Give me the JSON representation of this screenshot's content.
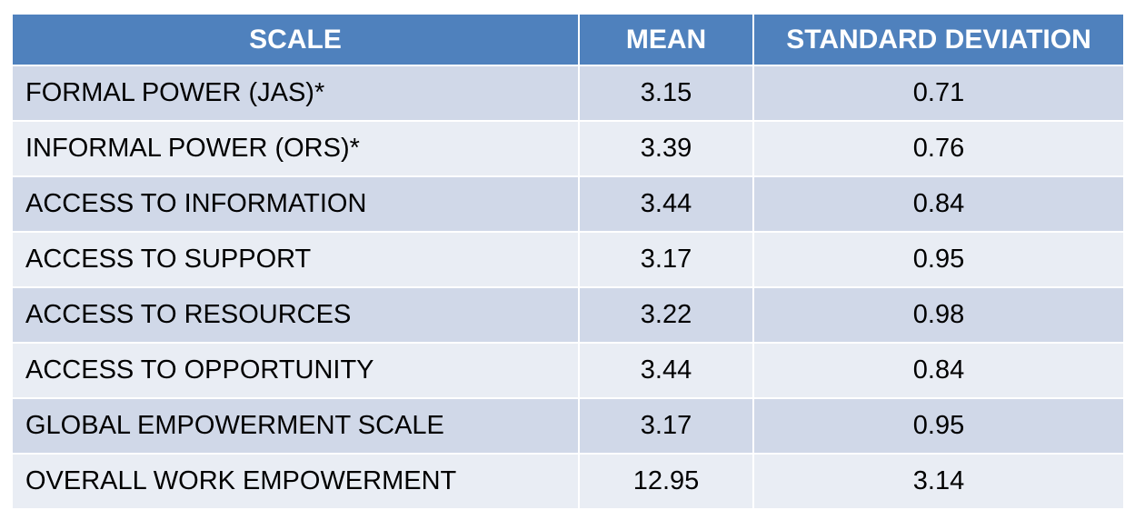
{
  "table": {
    "headers": [
      "SCALE",
      "MEAN",
      "STANDARD DEVIATION"
    ],
    "rows": [
      {
        "scale": "FORMAL POWER (JAS)*",
        "mean": "3.15",
        "sd": "0.71"
      },
      {
        "scale": "INFORMAL POWER (ORS)*",
        "mean": "3.39",
        "sd": "0.76"
      },
      {
        "scale": "ACCESS TO INFORMATION",
        "mean": "3.44",
        "sd": "0.84"
      },
      {
        "scale": "ACCESS TO SUPPORT",
        "mean": "3.17",
        "sd": "0.95"
      },
      {
        "scale": "ACCESS TO RESOURCES",
        "mean": "3.22",
        "sd": "0.98"
      },
      {
        "scale": "ACCESS TO OPPORTUNITY",
        "mean": "3.44",
        "sd": "0.84"
      },
      {
        "scale": "GLOBAL EMPOWERMENT SCALE",
        "mean": "3.17",
        "sd": "0.95"
      },
      {
        "scale": "OVERALL WORK EMPOWERMENT",
        "mean": "12.95",
        "sd": "3.14"
      }
    ]
  },
  "colors": {
    "header_bg": "#4f81bd",
    "row_odd_bg": "#d0d8e8",
    "row_even_bg": "#e9edf4"
  }
}
